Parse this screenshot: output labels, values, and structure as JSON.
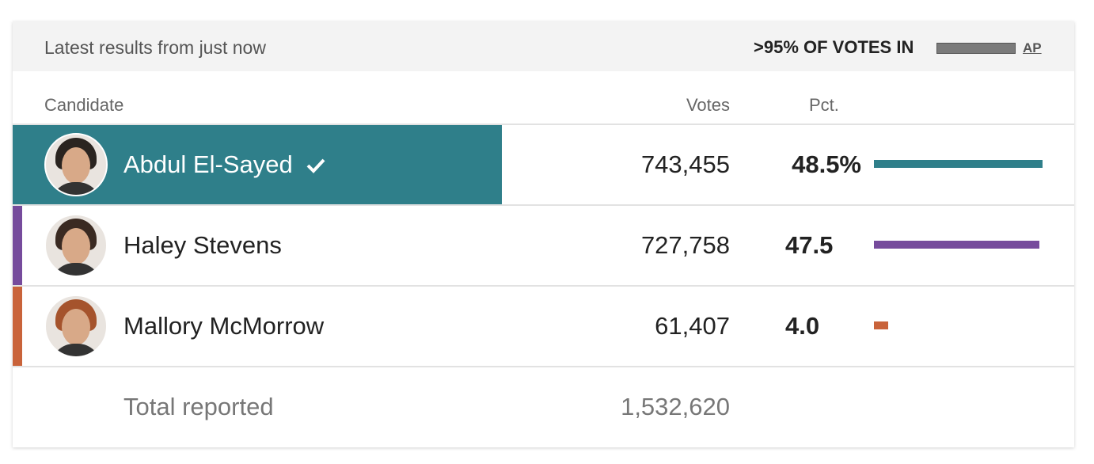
{
  "header": {
    "status": "Latest results from just now",
    "reporting": ">95% OF VOTES IN",
    "source": "AP"
  },
  "table": {
    "columns": [
      "Candidate",
      "Votes",
      "Pct."
    ],
    "rows": [
      {
        "name": "Abdul El-Sayed",
        "votes": "743,455",
        "pct": 48.5,
        "pct_label": "48.5%",
        "color": "#2f7f8a",
        "winner": true
      },
      {
        "name": "Haley Stevens",
        "votes": "727,758",
        "pct": 47.5,
        "pct_label": "47.5",
        "color": "#764b9c",
        "winner": false
      },
      {
        "name": "Mallory McMorrow",
        "votes": "61,407",
        "pct": 4.0,
        "pct_label": "4.0",
        "color": "#c9633a",
        "winner": false
      }
    ],
    "total": {
      "label": "Total reported",
      "votes": "1,532,620"
    }
  }
}
